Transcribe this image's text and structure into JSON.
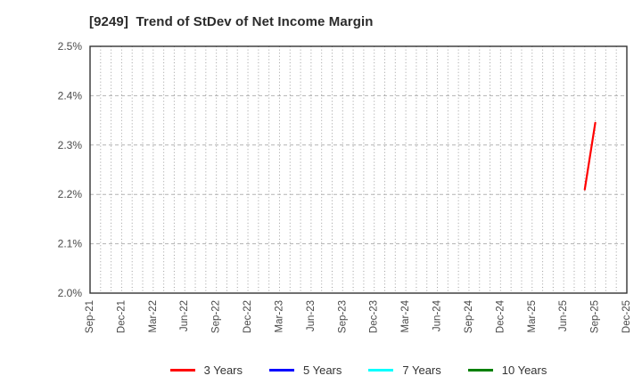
{
  "page": {
    "background": "#ffffff"
  },
  "chart_data": {
    "type": "line",
    "title": "[9249]  Trend of StDev of Net Income Margin",
    "xlabel": "",
    "ylabel": "",
    "ylim": [
      2.0,
      2.5
    ],
    "y_tick_step": 0.1,
    "y_tick_labels": [
      "2.0%",
      "2.1%",
      "2.2%",
      "2.3%",
      "2.4%",
      "2.5%"
    ],
    "x_tick_labels": [
      "Sep-21",
      "Dec-21",
      "Mar-22",
      "Jun-22",
      "Sep-22",
      "Dec-22",
      "Mar-23",
      "Jun-23",
      "Sep-23",
      "Dec-23",
      "Mar-24",
      "Jun-24",
      "Sep-24",
      "Dec-24",
      "Mar-25",
      "Jun-25",
      "Sep-25",
      "Dec-25"
    ],
    "x_axis": {
      "start": "Sep-21",
      "end": "Dec-25",
      "months_total": 51,
      "months_per_labeled_tick": 3,
      "minor_grid": "monthly"
    },
    "grid": {
      "horizontal_style": "dashed",
      "vertical_style": "dotted",
      "horizontal_color": "#b3b3b3",
      "vertical_color": "#a0a0a0"
    },
    "axis_color": "#333333",
    "tick_label_color": "#4a4a4a",
    "series": [
      {
        "name": "3 Years",
        "color": "#ff0000",
        "points": [
          {
            "x_label": "Aug-25",
            "month_index": 47,
            "value": 2.21
          },
          {
            "x_label": "Sep-25",
            "month_index": 48,
            "value": 2.345
          }
        ]
      },
      {
        "name": "5 Years",
        "color": "#0000ff",
        "points": []
      },
      {
        "name": "7 Years",
        "color": "#00ffff",
        "points": []
      },
      {
        "name": "10 Years",
        "color": "#008000",
        "points": []
      }
    ],
    "legend": {
      "position": "bottom-center",
      "entries": [
        "3 Years",
        "5 Years",
        "7 Years",
        "10 Years"
      ]
    }
  }
}
